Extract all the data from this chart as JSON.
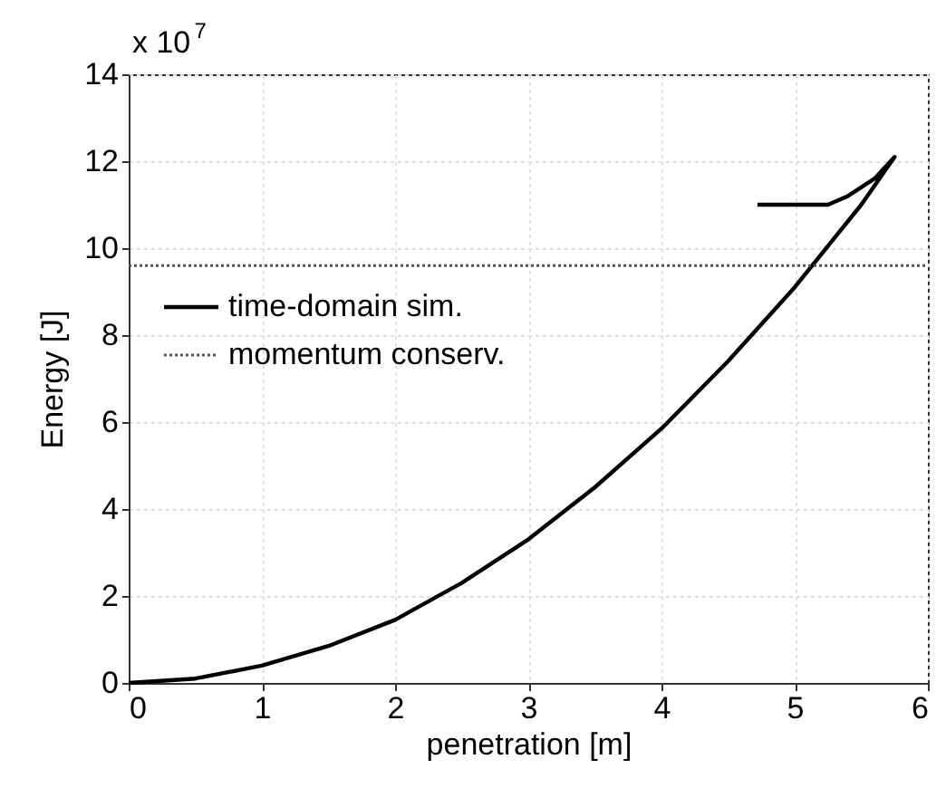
{
  "chart_data": {
    "type": "line",
    "xlabel": "penetration [m]",
    "ylabel": "Energy [J]",
    "annotations": [
      "x 10$^{7}$"
    ],
    "xlim": [
      0,
      6
    ],
    "xticks": [
      0,
      1,
      2,
      3,
      4,
      5,
      6
    ],
    "ylim": [
      0,
      14
    ],
    "yticks": [
      0,
      2,
      4,
      6,
      8,
      10,
      12,
      14
    ],
    "grid": true,
    "legend": "top left",
    "series": [
      {
        "name": "time-domain sim.",
        "color": "#000000",
        "line_style": "solid",
        "x": [
          0,
          0.5,
          1,
          1.5,
          2,
          2.5,
          3,
          3.5,
          4,
          4.5,
          5,
          5.5,
          5.75,
          5.6,
          5.4,
          5.25,
          4.72
        ],
        "values": [
          0,
          0.1,
          0.4,
          0.85,
          1.45,
          2.3,
          3.3,
          4.5,
          5.85,
          7.4,
          9.1,
          11.0,
          12.1,
          11.6,
          11.2,
          11.0,
          11.0
        ]
      },
      {
        "name": "momentum conserv.",
        "color": "#555555",
        "line_style": "dotted",
        "x": [
          0,
          6
        ],
        "values": [
          9.6,
          9.6
        ]
      }
    ]
  }
}
